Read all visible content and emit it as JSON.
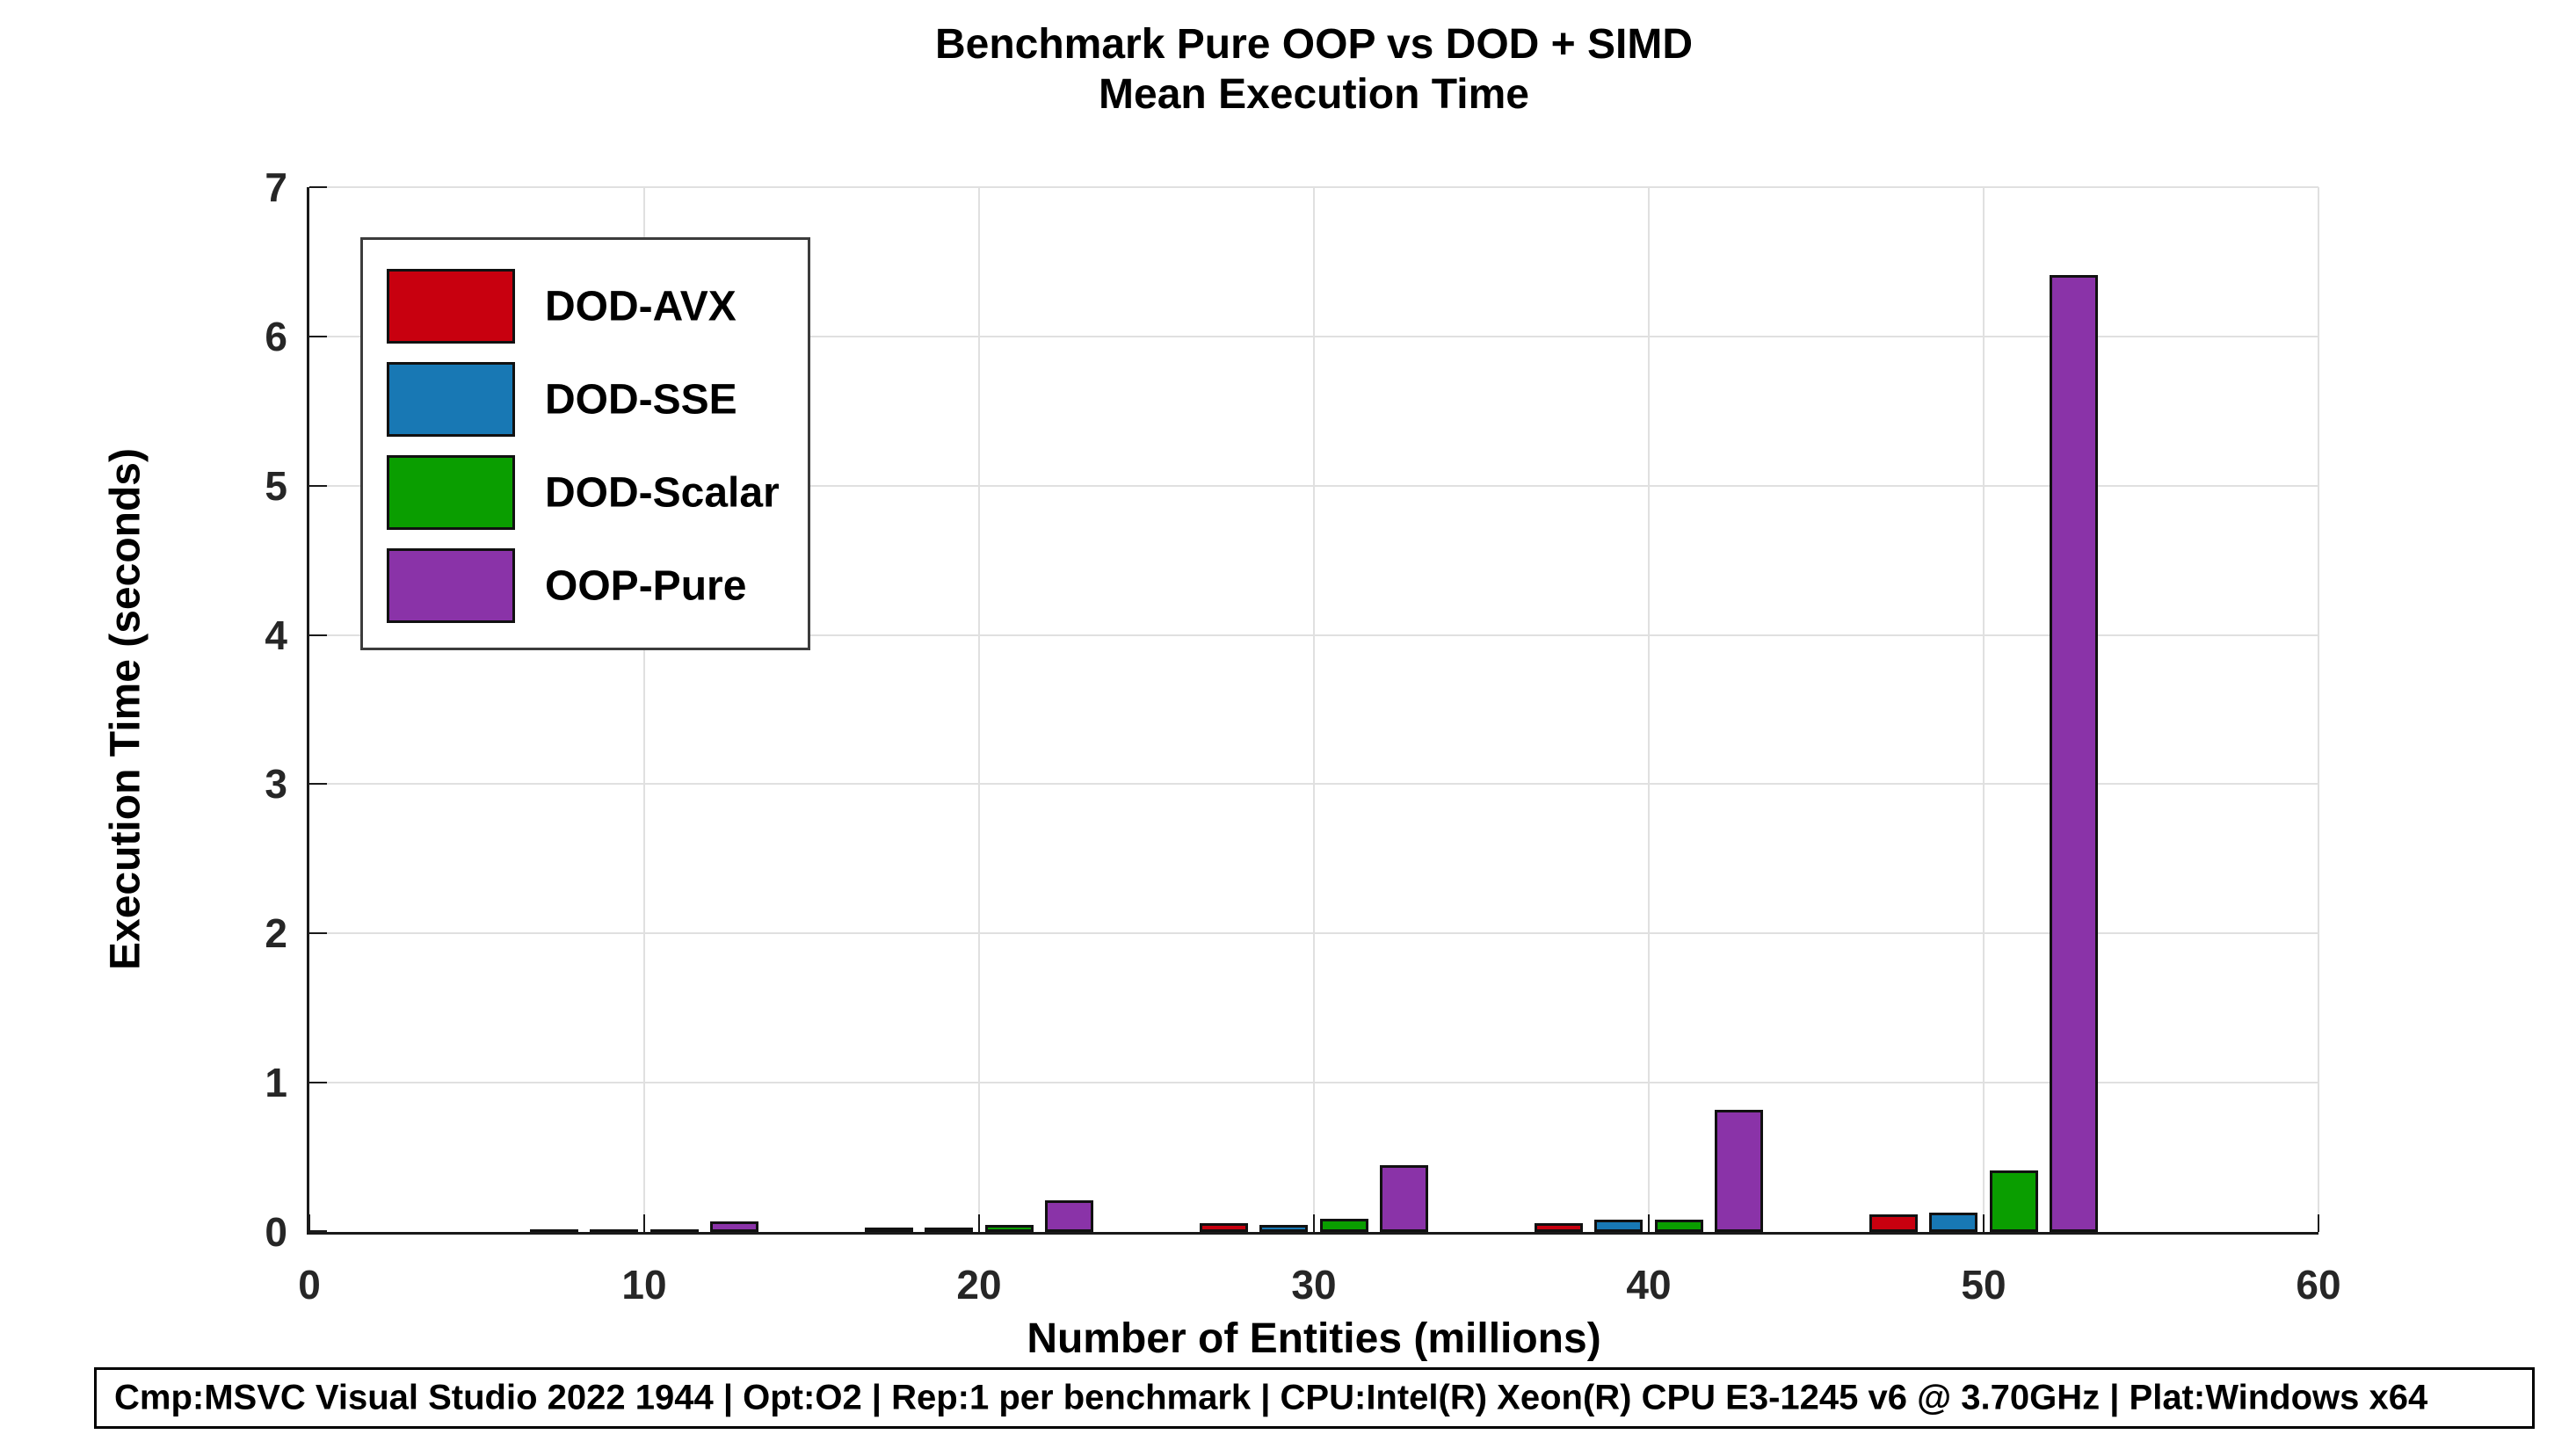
{
  "chart_data": {
    "type": "bar",
    "title": "Benchmark Pure OOP vs DOD + SIMD",
    "subtitle": "Mean Execution Time",
    "xlabel": "Number of Entities (millions)",
    "ylabel": "Execution Time (seconds)",
    "xlim": [
      0,
      60
    ],
    "ylim": [
      0,
      7
    ],
    "xticks": [
      0,
      10,
      20,
      30,
      40,
      50,
      60
    ],
    "yticks": [
      0,
      1,
      2,
      3,
      4,
      5,
      6,
      7
    ],
    "grid": true,
    "legend_position": "upper-left-inside",
    "categories": [
      10,
      20,
      30,
      40,
      50
    ],
    "series": [
      {
        "name": "DOD-AVX",
        "color": "#c8000f",
        "values": [
          0.02,
          0.03,
          0.06,
          0.06,
          0.12
        ]
      },
      {
        "name": "DOD-SSE",
        "color": "#1878b4",
        "values": [
          0.02,
          0.03,
          0.05,
          0.08,
          0.13
        ]
      },
      {
        "name": "DOD-Scalar",
        "color": "#0a9e00",
        "values": [
          0.02,
          0.05,
          0.09,
          0.08,
          0.41
        ]
      },
      {
        "name": "OOP-Pure",
        "color": "#8a33a8",
        "values": [
          0.07,
          0.21,
          0.45,
          0.82,
          6.41
        ]
      }
    ],
    "footer": "Cmp:MSVC Visual Studio 2022 1944 | Opt:O2 | Rep:1 per benchmark | CPU:Intel(R) Xeon(R) CPU E3-1245 v6 @ 3.70GHz | Plat:Windows x64",
    "colors": {
      "grid": "#e0e0e0",
      "axis": "#1a1a1a",
      "tick_label": "#262626"
    }
  }
}
